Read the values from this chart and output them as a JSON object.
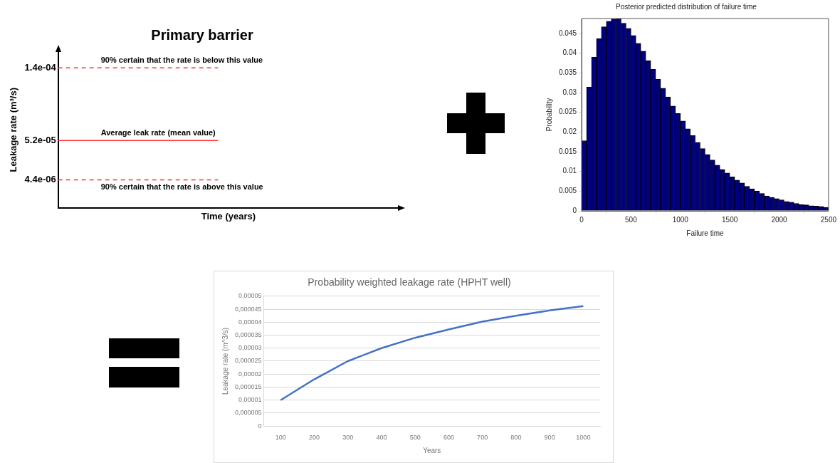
{
  "chart_data": [
    {
      "type": "line",
      "title": "Primary barrier",
      "xlabel": "Time (years)",
      "ylabel": "Leakage rate (m³/s)",
      "categories": [
        null,
        null,
        null,
        null
      ],
      "ylim": [
        -3e-05,
        0.00016
      ],
      "yticks": [
        {
          "value": 0.00014,
          "label": "1.4e-04"
        },
        {
          "value": 5.2e-05,
          "label": "5.2e-05"
        },
        {
          "value": 4.4e-06,
          "label": "4.4e-06"
        }
      ],
      "tick_labels": "y",
      "ref_lines": [
        {
          "axis": "y",
          "value": 0.00014,
          "label": "90% certain that the rate is below this value",
          "color": "#ff3333",
          "line_style": "dashed"
        },
        {
          "axis": "y",
          "value": 5.2e-05,
          "label": "Average leak rate (mean value)",
          "color": "#ff3333",
          "line_style": "solid"
        },
        {
          "axis": "y",
          "value": 4.4e-06,
          "label": "90% certain that the rate is above this value",
          "color": "#ff3333",
          "line_style": "dashed"
        }
      ]
    },
    {
      "type": "histogram",
      "title": "Posterior predicted distribution of failure time",
      "xlabel": "Failure time",
      "ylabel": "Probability",
      "color": "#000080",
      "bins": [
        0,
        50,
        100,
        150,
        200,
        250,
        300,
        350,
        400,
        450,
        500,
        550,
        600,
        650,
        700,
        750,
        800,
        850,
        900,
        950,
        1000,
        1050,
        1100,
        1150,
        1200,
        1250,
        1300,
        1350,
        1400,
        1450,
        1500,
        1550,
        1600,
        1650,
        1700,
        1750,
        1800,
        1850,
        1900,
        1950,
        2000,
        2050,
        2100,
        2150,
        2200,
        2250,
        2300,
        2350,
        2400,
        2450,
        2500
      ],
      "values": [
        0.0178,
        0.0314,
        0.039,
        0.0437,
        0.0467,
        0.0481,
        0.0487,
        0.0488,
        0.0476,
        0.0463,
        0.0445,
        0.0425,
        0.0405,
        0.0381,
        0.0359,
        0.0334,
        0.0311,
        0.0289,
        0.0266,
        0.0247,
        0.0228,
        0.0208,
        0.0191,
        0.0174,
        0.0158,
        0.0143,
        0.0129,
        0.0116,
        0.0105,
        0.0096,
        0.0086,
        0.0078,
        0.0071,
        0.0062,
        0.0056,
        0.005,
        0.0044,
        0.0038,
        0.0034,
        0.0031,
        0.0028,
        0.0024,
        0.0022,
        0.0019,
        0.0016,
        0.0015,
        0.0013,
        0.0012,
        0.0011,
        0.0009
      ],
      "xlim": [
        0,
        2500
      ],
      "xticks": [
        0,
        500,
        1000,
        1500,
        2000,
        2500
      ],
      "ylim": [
        0,
        0.0488
      ],
      "yticks": [
        0,
        0.005,
        0.01,
        0.015,
        0.02,
        0.025,
        0.03,
        0.035,
        0.04,
        0.045
      ]
    },
    {
      "type": "line",
      "title": "Probability weighted leakage rate (HPHT well)",
      "xlabel": "Years",
      "ylabel": "Leakage rate (m^3/s)",
      "categories": [
        "100",
        "200",
        "300",
        "400",
        "500",
        "600",
        "700",
        "800",
        "900",
        "1000"
      ],
      "series": [
        {
          "color": "#4472c4",
          "values": [
            1e-05,
            1.8e-05,
            2.5e-05,
            3e-05,
            3.4e-05,
            3.72e-05,
            4.02e-05,
            4.25e-05,
            4.45e-05,
            4.62e-05
          ]
        }
      ],
      "ylim": [
        0,
        5e-05
      ],
      "yticks": [
        {
          "value": 0,
          "label": "0"
        },
        {
          "value": 5e-06,
          "label": "0,000005"
        },
        {
          "value": 1e-05,
          "label": "0,00001"
        },
        {
          "value": 1.5e-05,
          "label": "0,000015"
        },
        {
          "value": 2e-05,
          "label": "0,00002"
        },
        {
          "value": 2.5e-05,
          "label": "0,000025"
        },
        {
          "value": 3e-05,
          "label": "0,00003"
        },
        {
          "value": 3.5e-05,
          "label": "0,000035"
        },
        {
          "value": 4e-05,
          "label": "0,00004"
        },
        {
          "value": 4.5e-05,
          "label": "0,000045"
        },
        {
          "value": 5e-05,
          "label": "0,00005"
        }
      ],
      "grid": "y"
    }
  ]
}
